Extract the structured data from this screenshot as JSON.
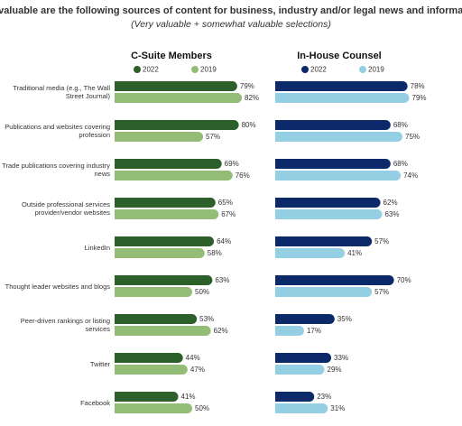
{
  "title": "How valuable are the following sources of content for business, industry and/or legal news and information?",
  "subtitle": "(Very valuable + somewhat valuable selections)",
  "chart_data": [
    {
      "type": "bar",
      "orientation": "horizontal",
      "title": "C-Suite Members",
      "categories": [
        "Traditional media (e.g., The Wall Street Journal)",
        "Publications and websites covering profession",
        "Trade publications covering industry news",
        "Outside professional services provider/vendor websites",
        "LinkedIn",
        "Thought leader websites and blogs",
        "Peer-driven rankings or listing services",
        "Twitter",
        "Facebook"
      ],
      "series": [
        {
          "name": "2022",
          "color": "#2d5f2a",
          "values": [
            79,
            80,
            69,
            65,
            64,
            63,
            53,
            44,
            41
          ],
          "value_labels": [
            "79%",
            "80%",
            "69%",
            "65%",
            "64%",
            "63%",
            "53%",
            "44%",
            "41%"
          ]
        },
        {
          "name": "2019",
          "color": "#93bd76",
          "values": [
            82,
            57,
            76,
            67,
            58,
            50,
            62,
            47,
            50
          ],
          "value_labels": [
            "82%",
            "57%",
            "76%",
            "67%",
            "58%",
            "50%",
            "62%",
            "47%",
            "50%"
          ]
        }
      ]
    },
    {
      "type": "bar",
      "orientation": "horizontal",
      "title": "In-House Counsel",
      "series": [
        {
          "name": "2022",
          "color": "#0c2a6a",
          "values": [
            78,
            68,
            68,
            62,
            57,
            70,
            35,
            33,
            23
          ],
          "value_labels": [
            "78%",
            "68%",
            "68%",
            "62%",
            "57%",
            "70%",
            "35%",
            "33%",
            "23%"
          ]
        },
        {
          "name": "2019",
          "color": "#94cfe4",
          "values": [
            79,
            75,
            74,
            63,
            41,
            57,
            17,
            29,
            31
          ],
          "value_labels": [
            "79%",
            "75%",
            "74%",
            "63%",
            "41%",
            "57%",
            "17%",
            "29%",
            "31%"
          ]
        }
      ]
    }
  ]
}
